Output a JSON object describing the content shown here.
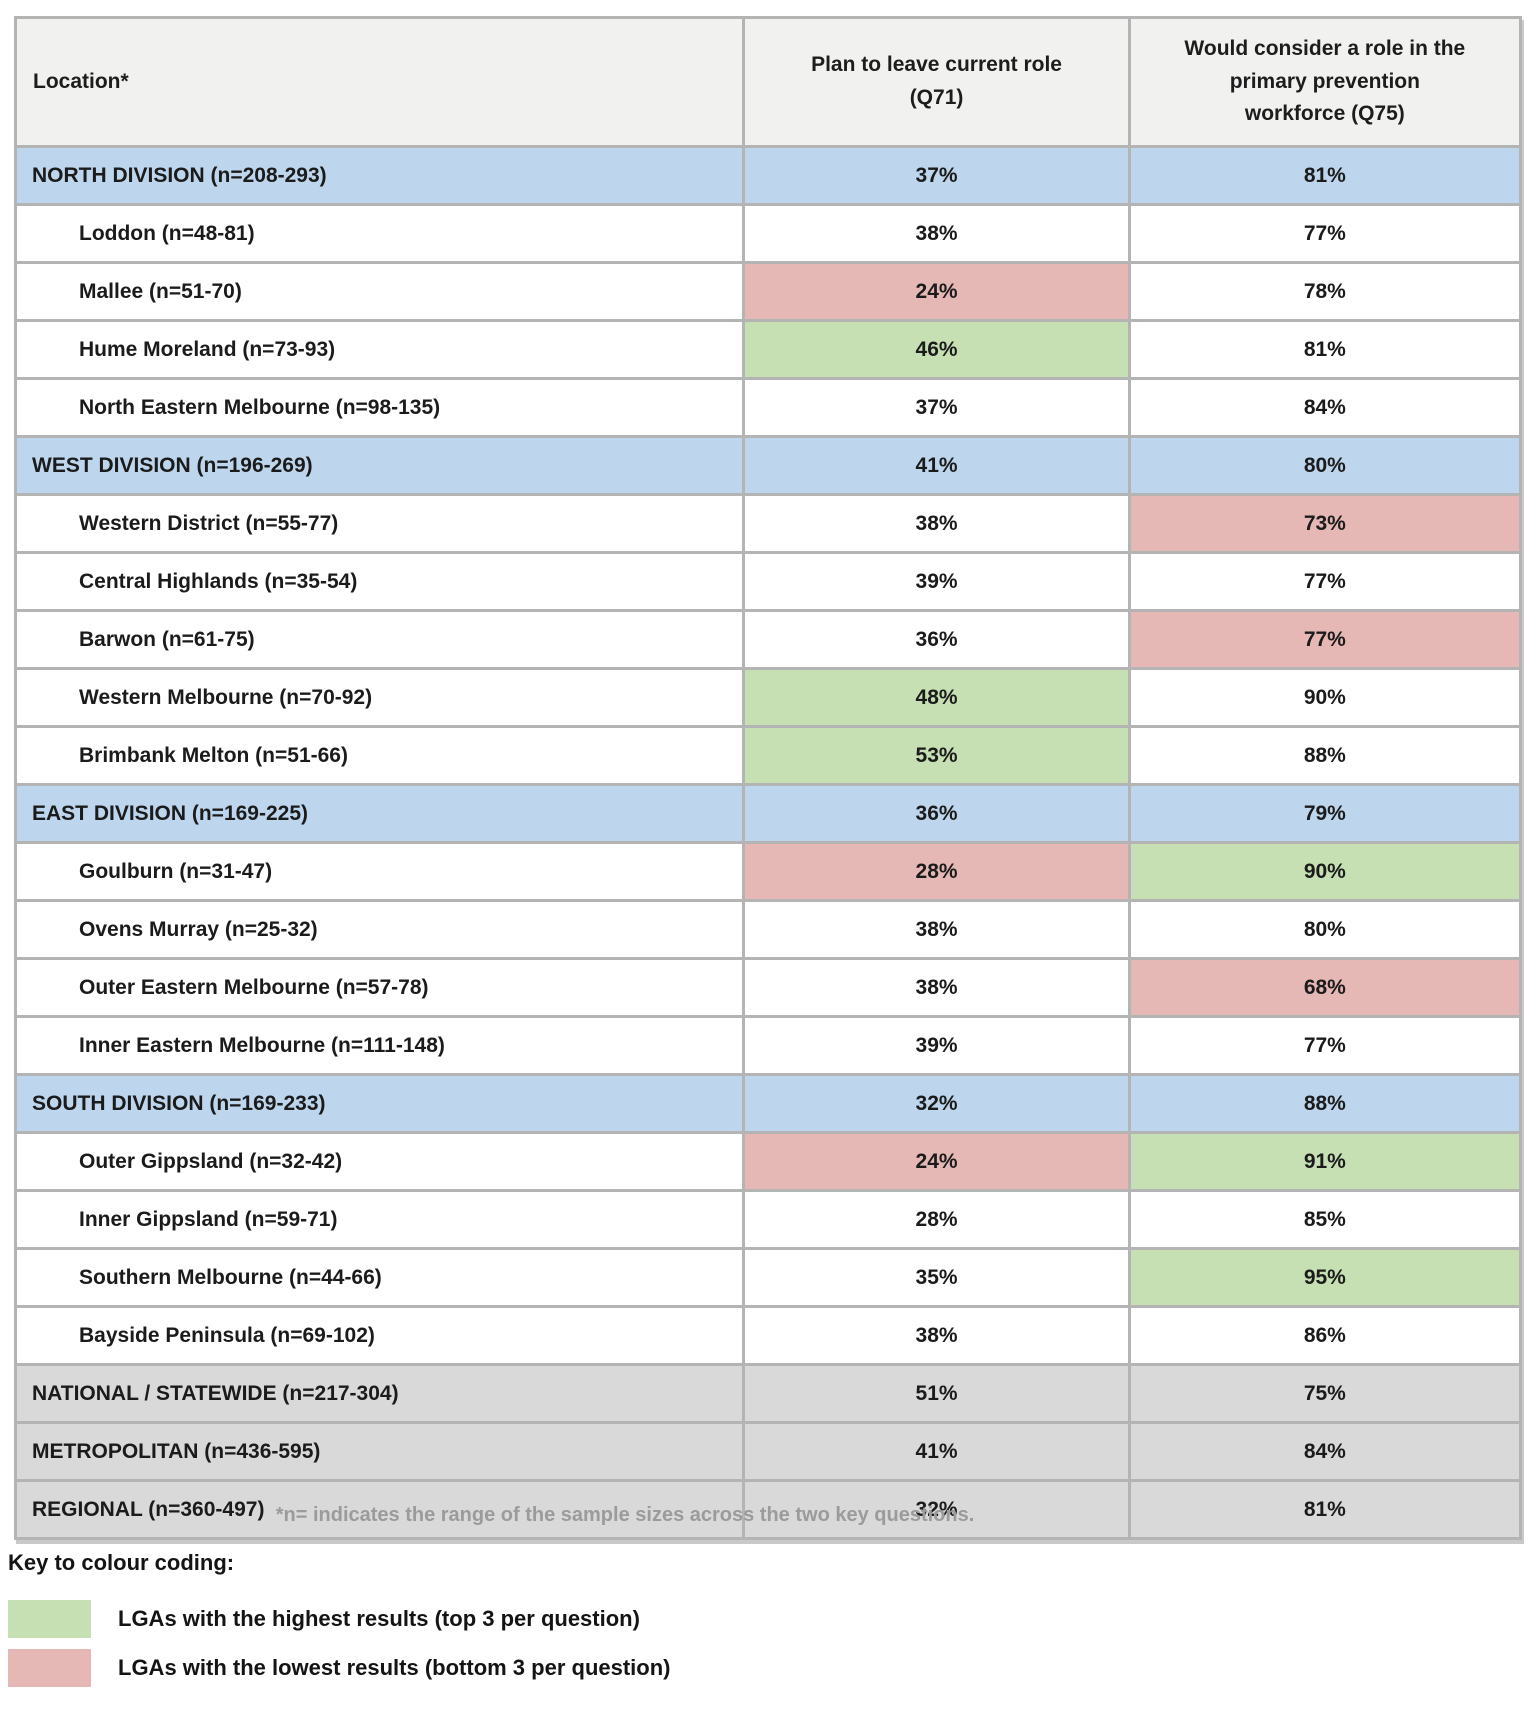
{
  "table": {
    "columns": [
      "Location*",
      "Plan to leave current role\n(Q71)",
      "Would consider a role in the\nprimary prevention\nworkforce (Q75)"
    ],
    "rows": [
      {
        "label": "NORTH DIVISION (n=208-293)",
        "type": "division",
        "q71": "37%",
        "q75": "81%",
        "q71_flag": "",
        "q75_flag": ""
      },
      {
        "label": "Loddon (n=48-81)",
        "type": "sub",
        "q71": "38%",
        "q75": "77%",
        "q71_flag": "",
        "q75_flag": ""
      },
      {
        "label": "Mallee (n=51-70)",
        "type": "sub",
        "q71": "24%",
        "q75": "78%",
        "q71_flag": "low",
        "q75_flag": ""
      },
      {
        "label": "Hume Moreland (n=73-93)",
        "type": "sub",
        "q71": "46%",
        "q75": "81%",
        "q71_flag": "high",
        "q75_flag": ""
      },
      {
        "label": "North Eastern Melbourne (n=98-135)",
        "type": "sub",
        "q71": "37%",
        "q75": "84%",
        "q71_flag": "",
        "q75_flag": ""
      },
      {
        "label": "WEST DIVISION (n=196-269)",
        "type": "division",
        "q71": "41%",
        "q75": "80%",
        "q71_flag": "",
        "q75_flag": ""
      },
      {
        "label": "Western District (n=55-77)",
        "type": "sub",
        "q71": "38%",
        "q75": "73%",
        "q71_flag": "",
        "q75_flag": "low"
      },
      {
        "label": "Central Highlands (n=35-54)",
        "type": "sub",
        "q71": "39%",
        "q75": "77%",
        "q71_flag": "",
        "q75_flag": ""
      },
      {
        "label": "Barwon (n=61-75)",
        "type": "sub",
        "q71": "36%",
        "q75": "77%",
        "q71_flag": "",
        "q75_flag": "low"
      },
      {
        "label": "Western Melbourne (n=70-92)",
        "type": "sub",
        "q71": "48%",
        "q75": "90%",
        "q71_flag": "high",
        "q75_flag": ""
      },
      {
        "label": "Brimbank Melton (n=51-66)",
        "type": "sub",
        "q71": "53%",
        "q75": "88%",
        "q71_flag": "high",
        "q75_flag": ""
      },
      {
        "label": "EAST DIVISION (n=169-225)",
        "type": "division",
        "q71": "36%",
        "q75": "79%",
        "q71_flag": "",
        "q75_flag": ""
      },
      {
        "label": "Goulburn (n=31-47)",
        "type": "sub",
        "q71": "28%",
        "q75": "90%",
        "q71_flag": "low",
        "q75_flag": "high"
      },
      {
        "label": "Ovens Murray (n=25-32)",
        "type": "sub",
        "q71": "38%",
        "q75": "80%",
        "q71_flag": "",
        "q75_flag": ""
      },
      {
        "label": "Outer Eastern Melbourne (n=57-78)",
        "type": "sub",
        "q71": "38%",
        "q75": "68%",
        "q71_flag": "",
        "q75_flag": "low"
      },
      {
        "label": "Inner Eastern Melbourne (n=111-148)",
        "type": "sub",
        "q71": "39%",
        "q75": "77%",
        "q71_flag": "",
        "q75_flag": ""
      },
      {
        "label": "SOUTH DIVISION (n=169-233)",
        "type": "division",
        "q71": "32%",
        "q75": "88%",
        "q71_flag": "",
        "q75_flag": ""
      },
      {
        "label": "Outer Gippsland (n=32-42)",
        "type": "sub",
        "q71": "24%",
        "q75": "91%",
        "q71_flag": "low",
        "q75_flag": "high"
      },
      {
        "label": "Inner Gippsland (n=59-71)",
        "type": "sub",
        "q71": "28%",
        "q75": "85%",
        "q71_flag": "",
        "q75_flag": ""
      },
      {
        "label": "Southern Melbourne (n=44-66)",
        "type": "sub",
        "q71": "35%",
        "q75": "95%",
        "q71_flag": "",
        "q75_flag": "high"
      },
      {
        "label": "Bayside Peninsula (n=69-102)",
        "type": "sub",
        "q71": "38%",
        "q75": "86%",
        "q71_flag": "",
        "q75_flag": ""
      },
      {
        "label": "NATIONAL / STATEWIDE (n=217-304)",
        "type": "summary",
        "q71": "51%",
        "q75": "75%",
        "q71_flag": "",
        "q75_flag": ""
      },
      {
        "label": "METROPOLITAN (n=436-595)",
        "type": "summary",
        "q71": "41%",
        "q75": "84%",
        "q71_flag": "",
        "q75_flag": ""
      },
      {
        "label": "REGIONAL (n=360-497)",
        "type": "summary",
        "q71": "32%",
        "q75": "81%",
        "q71_flag": "",
        "q75_flag": ""
      }
    ]
  },
  "footnote": "*n= indicates the range of the sample sizes across the two key questions.",
  "legend": {
    "title": "Key to colour coding:",
    "items": [
      {
        "color": "#c6e0b4",
        "prefix": "LGAs with the ",
        "keyword": "highest",
        "suffix": " results (top 3 per question)"
      },
      {
        "color": "#e5b8b5",
        "prefix": "LGAs with the ",
        "keyword": "lowest",
        "suffix": " results (bottom 3 per question)"
      }
    ]
  },
  "colors": {
    "division_row": "#bdd6ee",
    "summary_row": "#d9d9d9",
    "highest_cell": "#c6e0b4",
    "lowest_cell": "#e5b8b5",
    "header_row": "#f1f1ef",
    "border": "#b4b4b4"
  }
}
